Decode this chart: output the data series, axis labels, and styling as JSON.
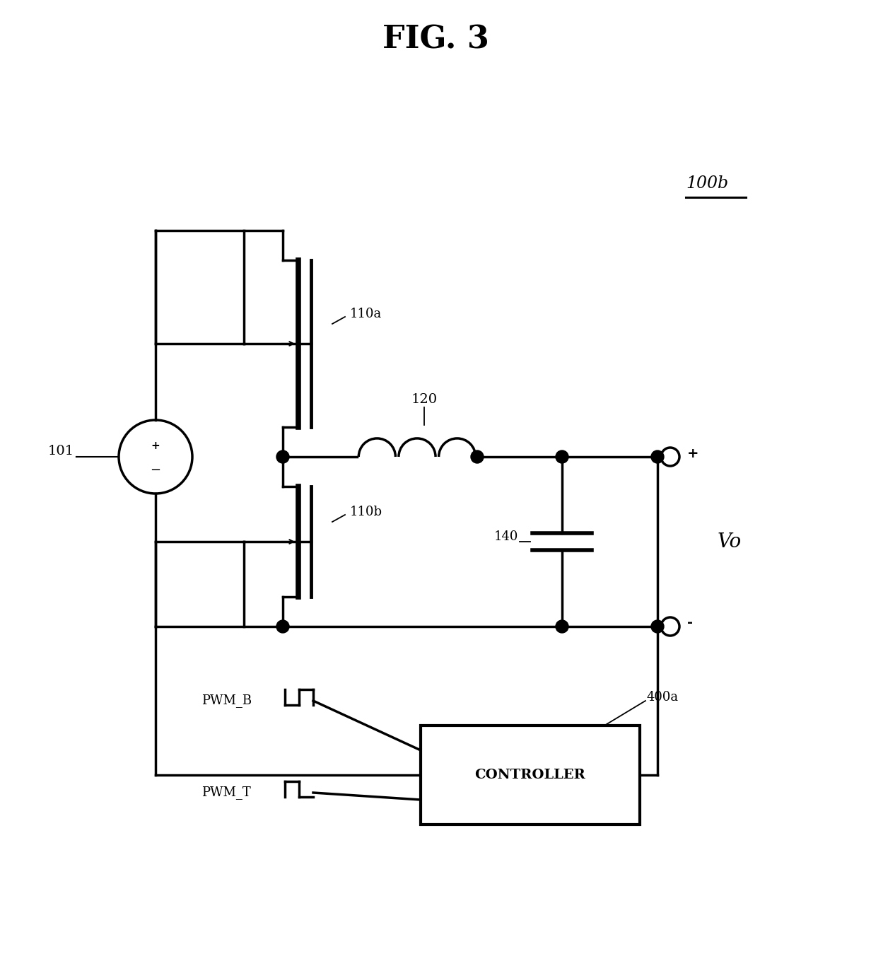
{
  "title": "FIG. 3",
  "label_100b": "100b",
  "label_101": "101",
  "label_110a": "110a",
  "label_110b": "110b",
  "label_120": "120",
  "label_140": "140",
  "label_400a": "400a",
  "label_Vo": "Vo",
  "label_plus": "+",
  "label_minus": "-",
  "label_PWM_B": "PWM_B",
  "label_PWM_T": "PWM_T",
  "label_CONTROLLER": "CONTROLLER",
  "bg_color": "#ffffff",
  "line_color": "#000000",
  "line_width": 2.5
}
